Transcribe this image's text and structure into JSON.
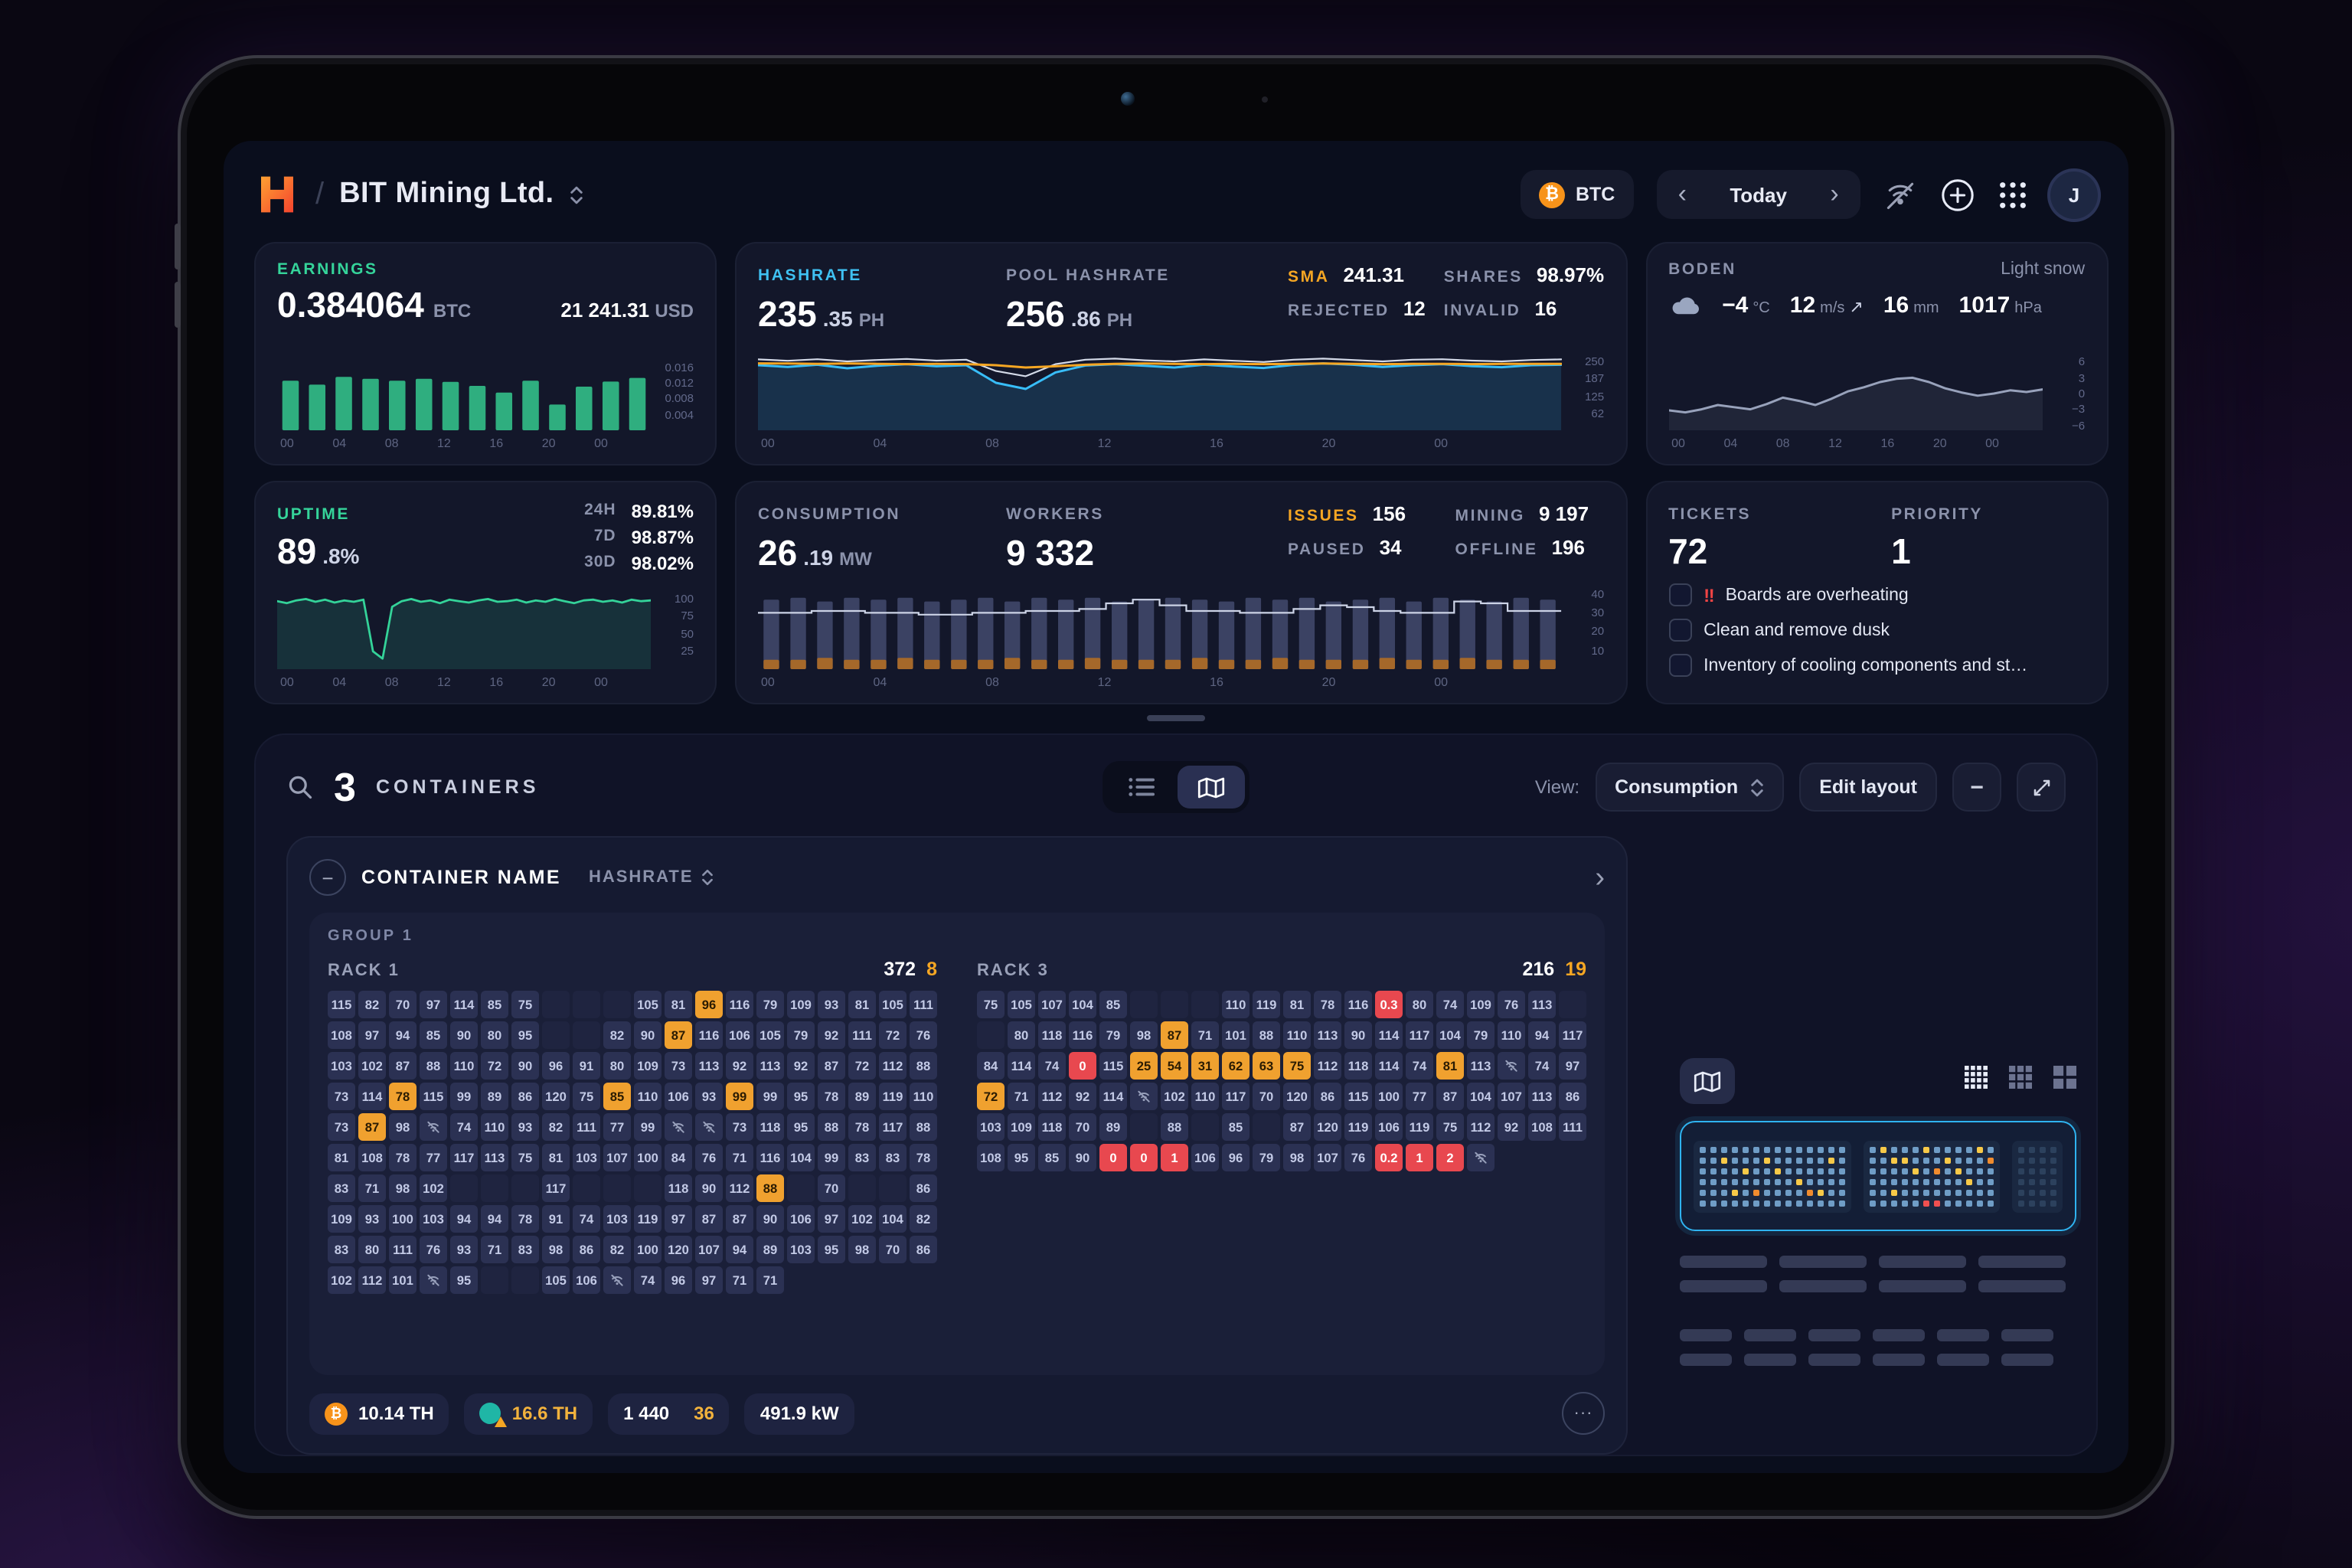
{
  "header": {
    "company": "BIT Mining Ltd.",
    "currency": "BTC",
    "date_label": "Today",
    "avatar_initial": "J"
  },
  "glyphs": {
    "slash": "/",
    "btc": "₿",
    "chev_left": "‹",
    "chev_right": "›",
    "minus": "−",
    "ellipsis": "···",
    "wind_arrow": "↗"
  },
  "stats": {
    "earnings": {
      "label": "EARNINGS",
      "value": "0.384064",
      "unit": "BTC",
      "usd": "21 241.31",
      "usd_unit": "USD"
    },
    "hashrate": {
      "label": "HASHRATE",
      "int": "235",
      "frac": ".35",
      "unit": "PH"
    },
    "pool": {
      "label": "POOL HASHRATE",
      "int": "256",
      "frac": ".86",
      "unit": "PH"
    },
    "sma": {
      "label": "SMA",
      "value": "241.31"
    },
    "rejected": {
      "label": "REJECTED",
      "value": "12"
    },
    "shares": {
      "label": "SHARES",
      "value": "98.97%"
    },
    "invalid": {
      "label": "INVALID",
      "value": "16"
    },
    "weather": {
      "title": "BODEN",
      "condition": "Light snow",
      "temp": "−4",
      "temp_unit": "°C",
      "wind": "12",
      "wind_unit": "m/s",
      "wind_dir": "↗",
      "precip": "16",
      "precip_unit": "mm",
      "pressure": "1017",
      "pressure_unit": "hPa"
    },
    "uptime": {
      "label": "UPTIME",
      "int": "89",
      "frac": ".8%",
      "rows": [
        {
          "k": "24H",
          "v": "89.81%"
        },
        {
          "k": "7D",
          "v": "98.87%"
        },
        {
          "k": "30D",
          "v": "98.02%"
        }
      ]
    },
    "consumption": {
      "label": "CONSUMPTION",
      "int": "26",
      "frac": ".19",
      "unit": "MW"
    },
    "workers": {
      "label": "WORKERS",
      "value": "9 332"
    },
    "issues": {
      "label": "ISSUES",
      "value": "156"
    },
    "paused": {
      "label": "PAUSED",
      "value": "34"
    },
    "mining": {
      "label": "MINING",
      "value": "9 197"
    },
    "offline": {
      "label": "OFFLINE",
      "value": "196"
    },
    "tickets": {
      "label": "TICKETS",
      "value": "72",
      "priority_label": "PRIORITY",
      "priority_value": "1",
      "items": [
        {
          "icon": "‼",
          "label": "Boards are overheating"
        },
        {
          "label": "Clean and remove dusk"
        },
        {
          "label": "Inventory of cooling components and st…"
        }
      ]
    }
  },
  "charts": {
    "earnings": {
      "kind": "bars",
      "range": [
        0,
        0.017
      ],
      "color": "#2fae7f",
      "bars": [
        0.0125,
        0.0115,
        0.0135,
        0.013,
        0.0125,
        0.013,
        0.0122,
        0.0112,
        0.0095,
        0.0125,
        0.0065,
        0.011,
        0.0123,
        0.0132
      ],
      "y_ticks": {
        "labels": [
          "0.016",
          "0.012",
          "0.008",
          "0.004"
        ],
        "values": [
          0.016,
          0.012,
          0.008,
          0.004
        ]
      },
      "x_ticks": [
        "00",
        "04",
        "08",
        "12",
        "16",
        "20",
        "00"
      ]
    },
    "hashrate": {
      "kind": "lines",
      "range": [
        0,
        300
      ],
      "series": [
        {
          "name": "pool-hashrate",
          "color": "#d4dae8",
          "width": 1.1,
          "values": [
            257,
            252,
            258,
            250,
            255,
            259,
            253,
            256,
            215,
            196,
            240,
            256,
            260,
            254,
            250,
            257,
            252,
            248,
            256,
            260,
            255,
            250,
            256,
            258,
            253,
            250,
            255,
            257
          ]
        },
        {
          "name": "hashrate",
          "color": "#38bdf8",
          "width": 1.5,
          "fill": "rgba(56,189,248,0.16)",
          "values": [
            236,
            230,
            238,
            225,
            234,
            240,
            232,
            236,
            172,
            150,
            210,
            235,
            240,
            234,
            228,
            238,
            231,
            226,
            237,
            243,
            238,
            230,
            236,
            240,
            233,
            229,
            236,
            238
          ]
        },
        {
          "name": "sma",
          "color": "#f5a623",
          "width": 1.5,
          "values": [
            243,
            242,
            241,
            242,
            241,
            240,
            241,
            240,
            236,
            228,
            232,
            238,
            241,
            242,
            241,
            240,
            241,
            240,
            241,
            242,
            241,
            240,
            241,
            241,
            240,
            241,
            241,
            241
          ]
        }
      ],
      "y_ticks": {
        "labels": [
          "250",
          "187",
          "125",
          "62"
        ],
        "values": [
          250,
          187,
          125,
          62
        ]
      },
      "x_ticks": [
        "00",
        "04",
        "08",
        "12",
        "16",
        "20",
        "00"
      ]
    },
    "weather": {
      "kind": "lines",
      "range": [
        -7,
        7
      ],
      "series": [
        {
          "name": "temperature",
          "color": "#98a2bb",
          "width": 1.5,
          "fill": "rgba(152,162,187,0.10)",
          "values": [
            -3.2,
            -3.6,
            -3.0,
            -2.2,
            -2.6,
            -3.0,
            -2.0,
            -0.8,
            -1.4,
            -2.2,
            -1.0,
            0.4,
            1.2,
            2.2,
            2.8,
            3.0,
            2.2,
            1.0,
            0.2,
            -0.4,
            0.0,
            0.6,
            0.3,
            0.8
          ]
        }
      ],
      "y_ticks": {
        "labels": [
          "6",
          "3",
          "0",
          "−3",
          "−6"
        ],
        "values": [
          6,
          3,
          0,
          -3,
          -6
        ]
      },
      "x_ticks": [
        "00",
        "04",
        "08",
        "12",
        "16",
        "20",
        "00"
      ]
    },
    "uptime": {
      "kind": "lines",
      "range": [
        0,
        108
      ],
      "series": [
        {
          "name": "uptime",
          "color": "#34d399",
          "width": 1.4,
          "fill": "rgba(52,211,153,0.14)",
          "values": [
            96,
            93,
            97,
            99,
            95,
            98,
            94,
            97,
            95,
            98,
            25,
            15,
            88,
            96,
            99,
            95,
            97,
            93,
            98,
            96,
            94,
            97,
            99,
            95,
            96,
            98,
            94,
            97,
            95,
            99,
            96,
            93,
            97,
            98,
            95,
            97,
            94,
            98,
            96,
            97
          ]
        }
      ],
      "y_ticks": {
        "labels": [
          "100",
          "75",
          "50",
          "25"
        ],
        "values": [
          100,
          75,
          50,
          25
        ]
      },
      "x_ticks": [
        "00",
        "04",
        "08",
        "12",
        "16",
        "20",
        "00"
      ]
    },
    "consumption": {
      "kind": "combo",
      "range": [
        0,
        44
      ],
      "bar_color": "#3b4263",
      "accent_color": "#a5682a",
      "line_color": "#ccd3e6",
      "bars": [
        37,
        38,
        36,
        38,
        37,
        38,
        36,
        37,
        38,
        36,
        38,
        37,
        38,
        36,
        37,
        38,
        37,
        36,
        38,
        37,
        38,
        36,
        37,
        38,
        36,
        38,
        37,
        36,
        38,
        37
      ],
      "orange": [
        5,
        5,
        6,
        5,
        5,
        6,
        5,
        5,
        5,
        6,
        5,
        5,
        6,
        5,
        5,
        5,
        6,
        5,
        5,
        6,
        5,
        5,
        5,
        6,
        5,
        5,
        6,
        5,
        5,
        5
      ],
      "line": [
        30,
        30,
        31,
        31,
        30,
        30,
        29,
        29,
        30,
        30,
        31,
        31,
        32,
        35,
        37,
        34,
        31,
        31,
        30,
        30,
        32,
        34,
        33,
        31,
        30,
        30,
        36,
        35,
        31,
        31
      ],
      "y_ticks": {
        "labels": [
          "40",
          "30",
          "20",
          "10"
        ],
        "values": [
          40,
          30,
          20,
          10
        ]
      },
      "x_ticks": [
        "00",
        "04",
        "08",
        "12",
        "16",
        "20",
        "00"
      ]
    }
  },
  "containers": {
    "count": "3",
    "label": "CONTAINERS",
    "view_label": "View:",
    "view_value": "Consumption",
    "edit_label": "Edit layout"
  },
  "container_card": {
    "title": "CONTAINER NAME",
    "sort_label": "HASHRATE",
    "group_label": "GROUP 1",
    "racks": [
      {
        "name": "RACK 1",
        "total": "372",
        "alerts": "8",
        "cols": 20,
        "rows": [
          "115 82 70 97 114 85 75 . . . 105 81 96o 116 79 109 93 81 105 111",
          "108 97 94 85 90 80 95 . . 82 90 87o 116 106 105 79 92 111 72 76",
          "103 102 87 88 110 72 90 96 91 80 109 73 113 92 113 92 87 72 112 88",
          "73 114 78o 115 99 89 86 120 75 85o 110 106 93 99o 99 95 78 89 119 110",
          "73 87o 98 ~ 74 110 93 82 111 77 99 ~ ~ 73 118 95 88 78 117",
          "88 81 108 78 77 117 113 75 81 103 107 100 84 76 71 116 104 99 83",
          "83 78 83 71 98 102 . . . 117 . . . 118 90 112 88o",
          ". 70 . . 86 109 93 100 103 94 94 78 91 74 103 119 97 87 87 90",
          "106 97 102 104 82 83 80 111 76 93 71 83 98 86 82 100 120 107 94 89",
          "103 95 98 70 86 102 112 101 ~ 95 . . 105 106 ~ 74 96 97 71 71"
        ]
      },
      {
        "name": "RACK 3",
        "total": "216",
        "alerts": "19",
        "cols": 20,
        "rows": [
          "75 105 107 104 85 . . . 110 119 81 78 116 0.3r",
          "80 74 109 76 113 . . 80 118 116 79 98 87o",
          "71 101 88 110 113 90 114 117 104 79 110 94 117 84",
          "114 74 0r 115 25o 54o 31o 62o 63o 75o 112 118 114",
          "74 81o 113 ~ 74 97 72o 71 112 92 114 ~",
          "102 110 117 70 120 86 115 100 77 87 104 107 113",
          "86 103 109 118 70 89 . 88",
          ". 85 . 87 120 119 106 119 75 112 92 108",
          "111 108 95 85 90 0r 0r 1r 106",
          "96 79 98 107 76 0.2r 1r 2r ~"
        ]
      }
    ],
    "footer": {
      "hash": "10.14 TH",
      "warn": "16.6 TH",
      "workers": "1 440",
      "workers_alert": "36",
      "power": "491.9 kW"
    }
  },
  "minimap": {
    "blocks": [
      {
        "cols": 14,
        "rows": 6,
        "y": [
          [
            2,
            1
          ],
          [
            6,
            1
          ],
          [
            12,
            1
          ],
          [
            4,
            2
          ],
          [
            7,
            2
          ],
          [
            9,
            3
          ],
          [
            3,
            4
          ],
          [
            11,
            4
          ]
        ],
        "o": [
          [
            5,
            4
          ],
          [
            10,
            4
          ]
        ],
        "r": []
      },
      {
        "cols": 12,
        "rows": 6,
        "y": [
          [
            1,
            0
          ],
          [
            5,
            0
          ],
          [
            10,
            0
          ],
          [
            2,
            1
          ],
          [
            3,
            1
          ],
          [
            7,
            1
          ],
          [
            4,
            2
          ],
          [
            8,
            2
          ],
          [
            9,
            3
          ],
          [
            2,
            4
          ]
        ],
        "o": [
          [
            11,
            1
          ],
          [
            6,
            2
          ]
        ],
        "r": [
          [
            5,
            5
          ],
          [
            6,
            5
          ]
        ]
      },
      {
        "cols": 4,
        "rows": 6,
        "dim": true,
        "y": [],
        "o": [],
        "r": []
      }
    ]
  },
  "skeleton": {
    "groups": [
      [
        [
          57,
          57,
          57,
          57
        ],
        [
          57,
          57,
          57,
          57
        ]
      ],
      [
        [
          34,
          34,
          34,
          34,
          34,
          34
        ],
        [
          34,
          34,
          34,
          34,
          34,
          34
        ]
      ]
    ]
  }
}
